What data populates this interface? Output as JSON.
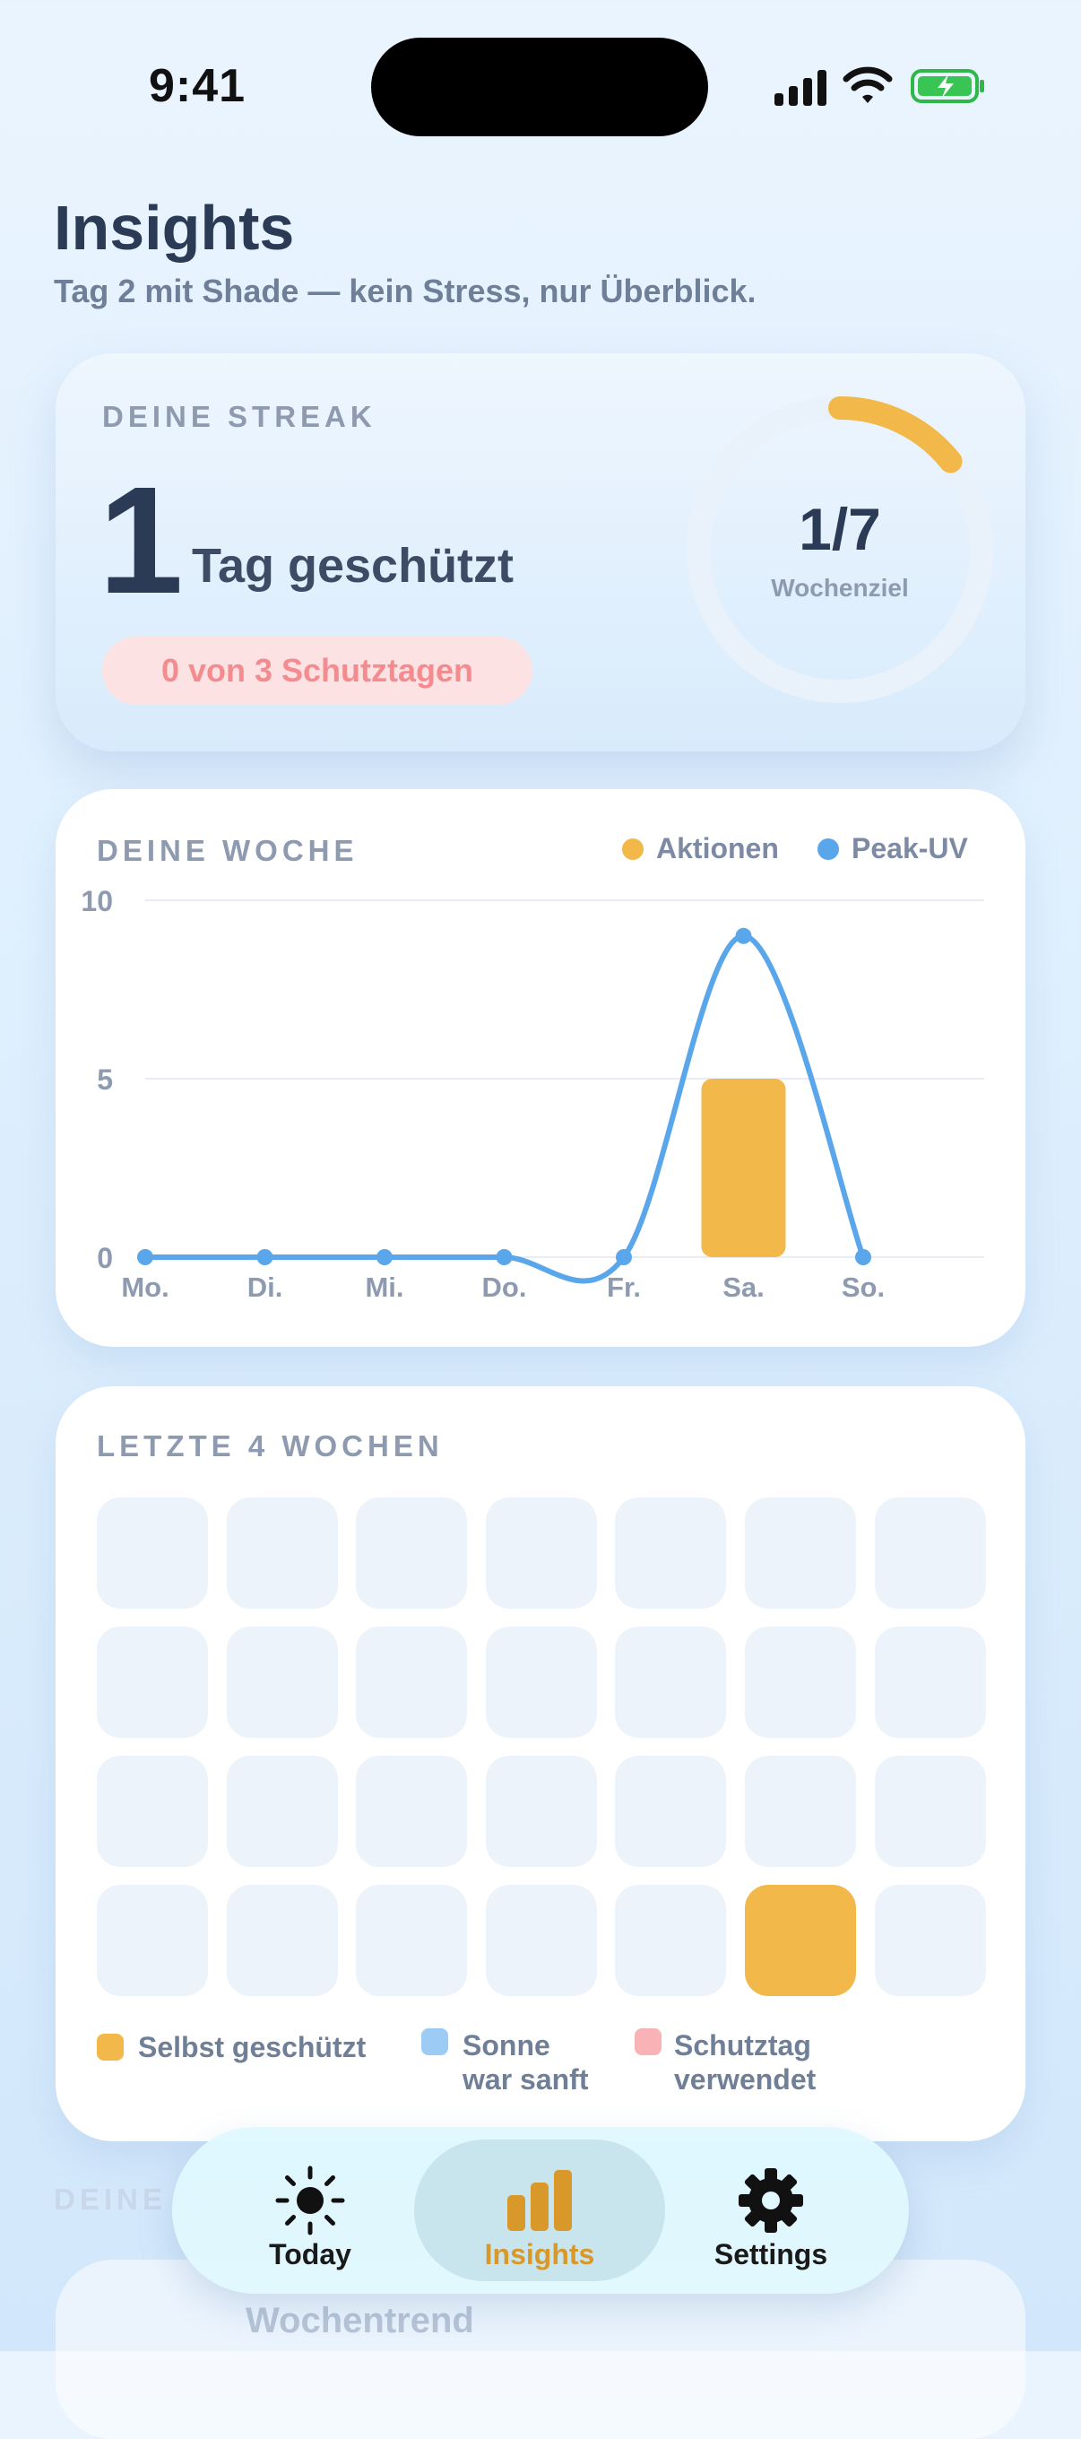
{
  "status_bar": {
    "time": "9:41"
  },
  "header": {
    "title": "Insights",
    "subtitle": "Tag 2 mit Shade — kein Stress, nur Überblick."
  },
  "streak": {
    "kicker": "DEINE STREAK",
    "value": "1",
    "unit": "Tag geschützt",
    "badge": "0 von 3 Schutztagen",
    "goal_value": "1/7",
    "goal_label": "Wochenziel",
    "goal_progress": 0.142857
  },
  "week": {
    "kicker": "DEINE WOCHE",
    "legend": [
      {
        "label": "Aktionen",
        "color": "#f3b84a"
      },
      {
        "label": "Peak-UV",
        "color": "#5aa6ea"
      }
    ]
  },
  "chart_data": {
    "type": "bar",
    "categories": [
      "Mo.",
      "Di.",
      "Mi.",
      "Do.",
      "Fr.",
      "Sa.",
      "So."
    ],
    "series": [
      {
        "name": "Aktionen",
        "type": "bar",
        "values": [
          0,
          0,
          0,
          0,
          0,
          5,
          0
        ],
        "color": "#f3b84a"
      },
      {
        "name": "Peak-UV",
        "type": "line",
        "values": [
          0,
          0,
          0,
          0,
          0,
          9,
          0
        ],
        "color": "#5aa6ea"
      }
    ],
    "yticks": [
      0,
      5,
      10
    ],
    "ylim": [
      0,
      10
    ],
    "grid": true,
    "legend_position": "top-right"
  },
  "last_weeks": {
    "kicker": "LETZTE 4 WOCHEN",
    "days": [
      [
        "empty",
        "empty",
        "empty",
        "empty",
        "empty",
        "empty",
        "empty"
      ],
      [
        "empty",
        "empty",
        "empty",
        "empty",
        "empty",
        "empty",
        "empty"
      ],
      [
        "empty",
        "empty",
        "empty",
        "empty",
        "empty",
        "empty",
        "empty"
      ],
      [
        "empty",
        "empty",
        "empty",
        "empty",
        "empty",
        "self",
        "empty"
      ]
    ],
    "colors": {
      "empty": "#edf3fb",
      "self": "#f3b84a",
      "gentle": "#9ccbf5",
      "shield": "#f9b3b6"
    },
    "legend": [
      {
        "line1": "Selbst geschützt",
        "line2": "",
        "color": "#f3b84a"
      },
      {
        "line1": "Sonne",
        "line2": "war sanft",
        "color": "#9ccbf5"
      },
      {
        "line1": "Schutztag",
        "line2": "verwendet",
        "color": "#f9b3b6"
      }
    ]
  },
  "behind": {
    "kicker": "DEINE MUSTER",
    "card_title": "Wochentrend"
  },
  "tabbar": {
    "tabs": [
      {
        "label": "Today",
        "icon": "sun-icon",
        "active": false
      },
      {
        "label": "Insights",
        "icon": "bar-chart-icon",
        "active": true
      },
      {
        "label": "Settings",
        "icon": "gear-icon",
        "active": false
      }
    ]
  }
}
